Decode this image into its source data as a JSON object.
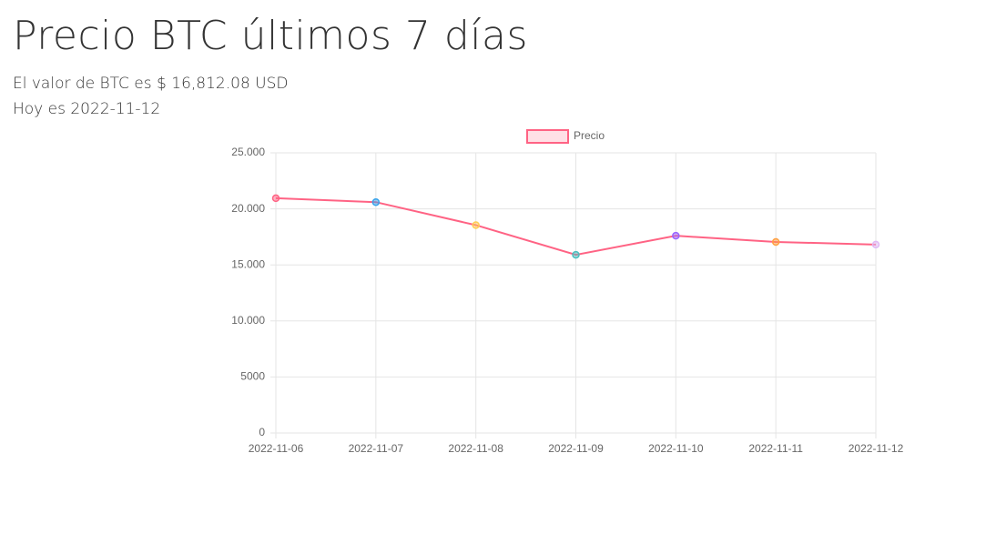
{
  "header": {
    "title": "Precio BTC últimos 7 días",
    "lines": [
      "El valor de BTC es $ 16,812.08 USD",
      "Hoy es 2022-11-12"
    ]
  },
  "chart_data": {
    "type": "line",
    "categories": [
      "2022-11-06",
      "2022-11-07",
      "2022-11-08",
      "2022-11-09",
      "2022-11-10",
      "2022-11-11",
      "2022-11-12"
    ],
    "series": [
      {
        "name": "Precio",
        "color": "#ff6384",
        "point_colors": [
          "#ff6384",
          "#36a2eb",
          "#ffcd56",
          "#4bc0c0",
          "#9966ff",
          "#ff9f40",
          "#e0b8f5"
        ],
        "values": [
          20950,
          20600,
          18550,
          15900,
          17600,
          17050,
          16812
        ]
      }
    ],
    "ylim": [
      0,
      25000
    ],
    "yticks": [
      0,
      5000,
      {
        "value": 10000,
        "label": "10.000"
      },
      {
        "value": 15000,
        "label": "15.000"
      },
      {
        "value": 20000,
        "label": "20.000"
      },
      {
        "value": 25000,
        "label": "25.000"
      }
    ],
    "grid": true,
    "legend": "top"
  }
}
